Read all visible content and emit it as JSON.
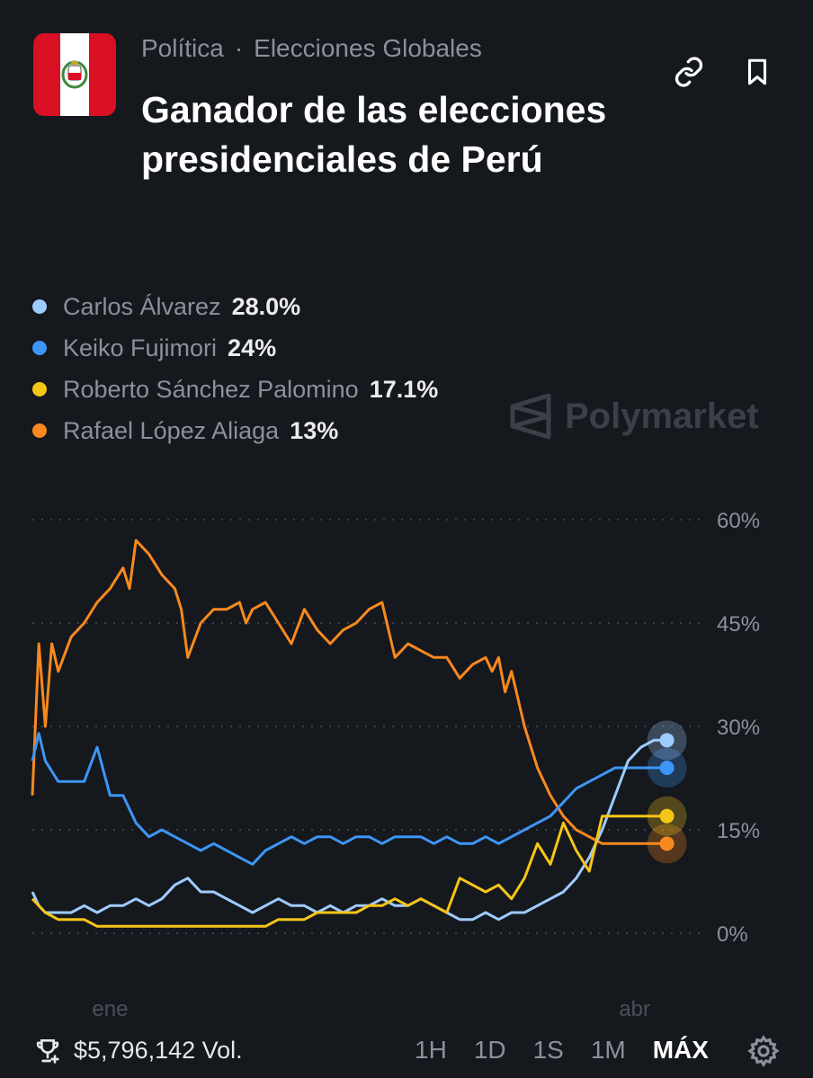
{
  "header": {
    "category": "Política",
    "separator": "·",
    "subcategory": "Elecciones Globales",
    "title": "Ganador de las elecciones presidenciales de Perú"
  },
  "watermark": "Polymarket",
  "legend": [
    {
      "name": "Carlos Álvarez",
      "pct": "28.0%",
      "color": "#9ecbff"
    },
    {
      "name": "Keiko Fujimori",
      "pct": "24%",
      "color": "#3d96f5"
    },
    {
      "name": "Roberto Sánchez Palomino",
      "pct": "17.1%",
      "color": "#f5c518"
    },
    {
      "name": "Rafael López Aliaga",
      "pct": "13%",
      "color": "#f7891f"
    }
  ],
  "footer": {
    "volume": "$5,796,142 Vol.",
    "ranges": [
      "1H",
      "1D",
      "1S",
      "1M",
      "MÁX"
    ],
    "active_range": "MÁX"
  },
  "chart_data": {
    "type": "line",
    "title": "Ganador de las elecciones presidenciales de Perú",
    "ylabel": "",
    "xlabel": "",
    "ylim": [
      0,
      60
    ],
    "yticks": [
      "60%",
      "45%",
      "30%",
      "15%",
      "0%"
    ],
    "ytick_values": [
      60,
      45,
      30,
      15,
      0
    ],
    "xticks": [
      "ene",
      "abr"
    ],
    "xtick_values": [
      12,
      93
    ],
    "xlim": [
      0,
      100
    ],
    "grid": true,
    "series": [
      {
        "name": "Rafael López Aliaga",
        "color": "#f7891f",
        "x": [
          0,
          1,
          2,
          3,
          4,
          6,
          8,
          10,
          12,
          14,
          15,
          16,
          18,
          20,
          22,
          23,
          24,
          26,
          28,
          30,
          32,
          33,
          34,
          36,
          38,
          40,
          42,
          44,
          46,
          48,
          50,
          52,
          54,
          56,
          58,
          60,
          62,
          64,
          66,
          68,
          70,
          71,
          72,
          73,
          74,
          76,
          78,
          80,
          82,
          84,
          86,
          88,
          90,
          91,
          92,
          93,
          94,
          95,
          96,
          97,
          98
        ],
        "y": [
          20,
          42,
          30,
          42,
          38,
          43,
          45,
          48,
          50,
          53,
          50,
          57,
          55,
          52,
          50,
          47,
          40,
          45,
          47,
          47,
          48,
          45,
          47,
          48,
          45,
          42,
          47,
          44,
          42,
          44,
          45,
          47,
          48,
          40,
          42,
          41,
          40,
          40,
          37,
          39,
          40,
          38,
          40,
          35,
          38,
          30,
          24,
          20,
          17,
          15,
          14,
          13,
          13,
          13,
          13,
          13,
          13,
          13,
          13,
          13,
          13
        ]
      },
      {
        "name": "Keiko Fujimori",
        "color": "#3d96f5",
        "x": [
          0,
          1,
          2,
          4,
          6,
          8,
          10,
          12,
          14,
          16,
          18,
          20,
          22,
          24,
          26,
          28,
          30,
          32,
          34,
          36,
          38,
          40,
          42,
          44,
          46,
          48,
          50,
          52,
          54,
          56,
          58,
          60,
          62,
          64,
          66,
          68,
          70,
          72,
          74,
          76,
          78,
          80,
          82,
          84,
          86,
          88,
          90,
          92,
          94,
          96,
          98
        ],
        "y": [
          25,
          29,
          25,
          22,
          22,
          22,
          27,
          20,
          20,
          16,
          14,
          15,
          14,
          13,
          12,
          13,
          12,
          11,
          10,
          12,
          13,
          14,
          13,
          14,
          14,
          13,
          14,
          14,
          13,
          14,
          14,
          14,
          13,
          14,
          13,
          13,
          14,
          13,
          14,
          15,
          16,
          17,
          19,
          21,
          22,
          23,
          24,
          24,
          24,
          24,
          24
        ]
      },
      {
        "name": "Carlos Álvarez",
        "color": "#9ecbff",
        "x": [
          0,
          1,
          2,
          4,
          6,
          8,
          10,
          12,
          14,
          16,
          18,
          20,
          22,
          24,
          26,
          28,
          30,
          32,
          34,
          36,
          38,
          40,
          42,
          44,
          46,
          48,
          50,
          52,
          54,
          56,
          58,
          60,
          62,
          64,
          66,
          68,
          70,
          72,
          74,
          76,
          78,
          80,
          82,
          84,
          86,
          88,
          90,
          92,
          94,
          96,
          98
        ],
        "y": [
          6,
          4,
          3,
          3,
          3,
          4,
          3,
          4,
          4,
          5,
          4,
          5,
          7,
          8,
          6,
          6,
          5,
          4,
          3,
          4,
          5,
          4,
          4,
          3,
          4,
          3,
          4,
          4,
          5,
          4,
          4,
          5,
          4,
          3,
          2,
          2,
          3,
          2,
          3,
          3,
          4,
          5,
          6,
          8,
          11,
          15,
          20,
          25,
          27,
          28,
          28
        ]
      },
      {
        "name": "Roberto Sánchez Palomino",
        "color": "#f5c518",
        "x": [
          0,
          1,
          2,
          4,
          6,
          8,
          10,
          12,
          14,
          16,
          18,
          20,
          22,
          24,
          26,
          28,
          30,
          32,
          34,
          36,
          38,
          40,
          42,
          44,
          46,
          48,
          50,
          52,
          54,
          56,
          58,
          60,
          62,
          64,
          66,
          68,
          70,
          72,
          74,
          76,
          78,
          80,
          82,
          84,
          86,
          88,
          90,
          92,
          94,
          96,
          98
        ],
        "y": [
          5,
          4,
          3,
          2,
          2,
          2,
          1,
          1,
          1,
          1,
          1,
          1,
          1,
          1,
          1,
          1,
          1,
          1,
          1,
          1,
          2,
          2,
          2,
          3,
          3,
          3,
          3,
          4,
          4,
          5,
          4,
          5,
          4,
          3,
          8,
          7,
          6,
          7,
          5,
          8,
          13,
          10,
          16,
          12,
          9,
          17,
          17,
          17,
          17,
          17,
          17
        ]
      }
    ]
  }
}
